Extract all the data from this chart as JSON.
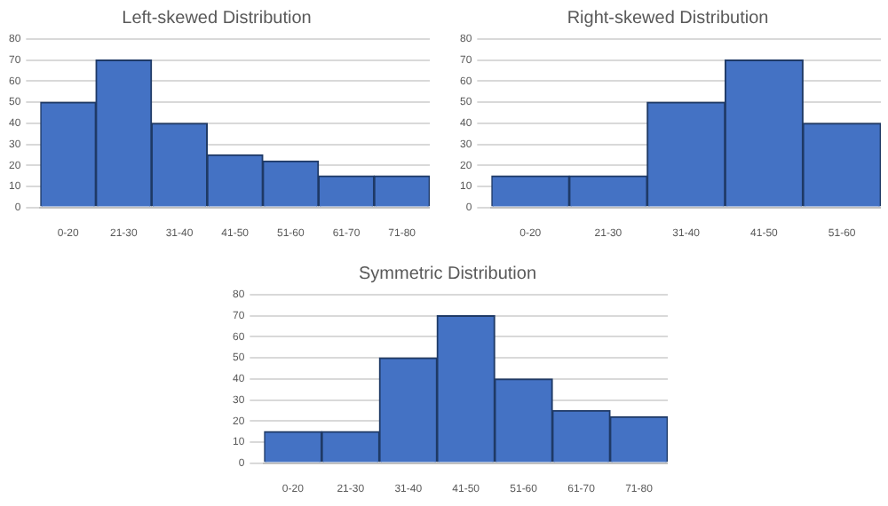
{
  "chart_data": [
    {
      "type": "bar",
      "title": "Left-skewed Distribution",
      "categories": [
        "0-20",
        "21-30",
        "31-40",
        "41-50",
        "51-60",
        "61-70",
        "71-80"
      ],
      "values": [
        50,
        70,
        40,
        25,
        22,
        15,
        15
      ],
      "color": "#4472c4",
      "ylim": [
        0,
        80
      ],
      "yticks": [
        0,
        10,
        20,
        30,
        40,
        50,
        60,
        70,
        80
      ],
      "grid": "y",
      "legend": false
    },
    {
      "type": "bar",
      "title": "Right-skewed Distribution",
      "categories": [
        "0-20",
        "21-30",
        "31-40",
        "41-50",
        "51-60"
      ],
      "values": [
        15,
        15,
        50,
        70,
        40
      ],
      "color": "#4472c4",
      "ylim": [
        0,
        80
      ],
      "yticks": [
        0,
        10,
        20,
        30,
        40,
        50,
        60,
        70,
        80
      ],
      "grid": "y",
      "legend": false
    },
    {
      "type": "bar",
      "title": "Symmetric Distribution",
      "categories": [
        "0-20",
        "21-30",
        "31-40",
        "41-50",
        "51-60",
        "61-70",
        "71-80"
      ],
      "values": [
        15,
        15,
        50,
        70,
        40,
        25,
        22
      ],
      "color": "#4472c4",
      "ylim": [
        0,
        80
      ],
      "yticks": [
        0,
        10,
        20,
        30,
        40,
        50,
        60,
        70,
        80
      ],
      "grid": "y",
      "legend": false
    }
  ]
}
